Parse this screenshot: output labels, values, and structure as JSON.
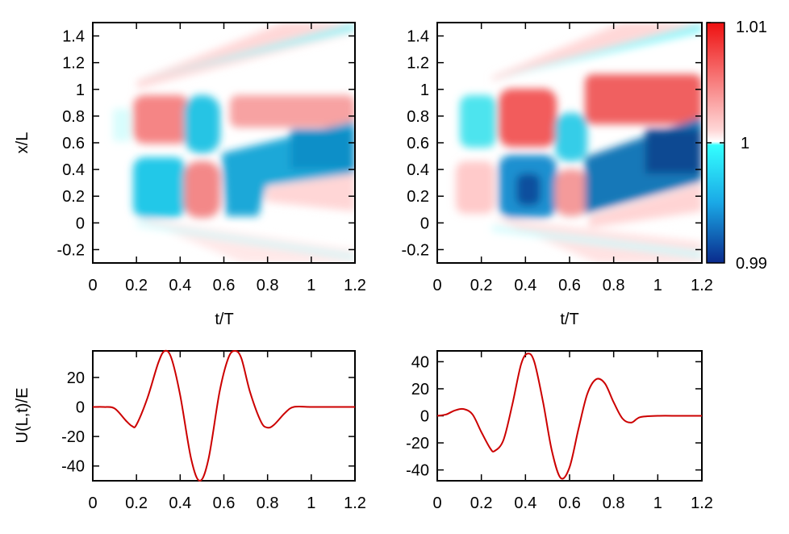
{
  "colorbar": {
    "min_label": "0.99",
    "mid_label": "1",
    "max_label": "1.01",
    "colors": {
      "low": "#0a2a8c",
      "low_mid": "#1aa8e6",
      "cyan": "#33ffff",
      "white": "#ffffff",
      "pink": "#ffd8d8",
      "high": "#ee1010"
    }
  },
  "chart_data": [
    {
      "id": "heatmap-left",
      "type": "heatmap",
      "title": "",
      "xlabel": "t/T",
      "ylabel": "x/L",
      "xlim": [
        0,
        1.2
      ],
      "ylim": [
        -0.3,
        1.5
      ],
      "x_ticks": [
        "0",
        "0.2",
        "0.4",
        "0.6",
        "0.8",
        "1",
        "1.2"
      ],
      "y_ticks": [
        "-0.2",
        "0",
        "0.2",
        "0.4",
        "0.6",
        "0.8",
        "1",
        "1.2",
        "1.4"
      ],
      "value_range": [
        0.99,
        1.01
      ],
      "regions": [
        {
          "t": 0.2,
          "x": 0.78,
          "value": 1.005
        },
        {
          "t": 0.3,
          "x": 0.25,
          "value": 0.995
        },
        {
          "t": 0.48,
          "x": 0.75,
          "value": 0.995
        },
        {
          "t": 0.48,
          "x": 0.2,
          "value": 1.005
        },
        {
          "t": 0.7,
          "x": 0.8,
          "value": 1.004
        },
        {
          "t": 1.0,
          "x": 0.6,
          "value": 0.994
        },
        {
          "t": 1.0,
          "x": 0.9,
          "value": 1.004
        }
      ]
    },
    {
      "id": "heatmap-right",
      "type": "heatmap",
      "title": "",
      "xlabel": "t/T",
      "ylabel": "",
      "xlim": [
        0,
        1.2
      ],
      "ylim": [
        -0.3,
        1.5
      ],
      "x_ticks": [
        "0",
        "0.2",
        "0.4",
        "0.6",
        "0.8",
        "1",
        "1.2"
      ],
      "y_ticks": [
        "-0.2",
        "0",
        "0.2",
        "0.4",
        "0.6",
        "0.8",
        "1",
        "1.2",
        "1.4"
      ],
      "value_range": [
        0.99,
        1.01
      ],
      "regions": [
        {
          "t": 0.18,
          "x": 0.8,
          "value": 0.996
        },
        {
          "t": 0.4,
          "x": 0.78,
          "value": 1.006
        },
        {
          "t": 0.4,
          "x": 0.25,
          "value": 0.992
        },
        {
          "t": 0.58,
          "x": 0.65,
          "value": 0.996
        },
        {
          "t": 0.58,
          "x": 0.2,
          "value": 1.005
        },
        {
          "t": 1.1,
          "x": 0.5,
          "value": 0.991
        },
        {
          "t": 1.0,
          "x": 0.9,
          "value": 1.007
        }
      ]
    },
    {
      "id": "line-left",
      "type": "line",
      "title": "",
      "xlabel": "",
      "ylabel": "U(L,t)/E",
      "xlim": [
        0,
        1.2
      ],
      "ylim": [
        -50,
        38
      ],
      "x_ticks": [
        "0",
        "0.2",
        "0.4",
        "0.6",
        "0.8",
        "1",
        "1.2"
      ],
      "y_ticks": [
        "-40",
        "-20",
        "0",
        "20"
      ],
      "series": [
        {
          "name": "U(L,t)/E",
          "color": "#cc0000",
          "x": [
            0,
            0.05,
            0.1,
            0.15,
            0.18,
            0.2,
            0.25,
            0.3,
            0.33,
            0.36,
            0.4,
            0.45,
            0.49,
            0.53,
            0.58,
            0.62,
            0.65,
            0.68,
            0.72,
            0.77,
            0.8,
            0.83,
            0.88,
            0.92,
            1.0,
            1.1,
            1.2
          ],
          "y": [
            0,
            0,
            -1,
            -9,
            -13,
            -12,
            6,
            30,
            38,
            33,
            8,
            -35,
            -50,
            -35,
            10,
            33,
            38,
            33,
            10,
            -10,
            -14,
            -12,
            -4,
            0,
            0,
            0,
            0
          ]
        }
      ]
    },
    {
      "id": "line-right",
      "type": "line",
      "title": "",
      "xlabel": "",
      "ylabel": "",
      "xlim": [
        0,
        1.2
      ],
      "ylim": [
        -48,
        48
      ],
      "x_ticks": [
        "0",
        "0.2",
        "0.4",
        "0.6",
        "0.8",
        "1",
        "1.2"
      ],
      "y_ticks": [
        "-40",
        "-20",
        "0",
        "20",
        "40"
      ],
      "series": [
        {
          "name": "U(L,t)/E",
          "color": "#cc0000",
          "x": [
            0,
            0.04,
            0.08,
            0.12,
            0.16,
            0.2,
            0.24,
            0.26,
            0.3,
            0.34,
            0.38,
            0.41,
            0.44,
            0.48,
            0.52,
            0.56,
            0.6,
            0.64,
            0.68,
            0.72,
            0.76,
            0.8,
            0.84,
            0.88,
            0.92,
            1.0,
            1.1,
            1.2
          ],
          "y": [
            0,
            1,
            4,
            5,
            1,
            -12,
            -24,
            -26,
            -18,
            8,
            38,
            46,
            40,
            10,
            -26,
            -46,
            -38,
            -10,
            16,
            27,
            24,
            10,
            -2,
            -5,
            -1,
            0,
            0,
            0
          ]
        }
      ]
    }
  ]
}
